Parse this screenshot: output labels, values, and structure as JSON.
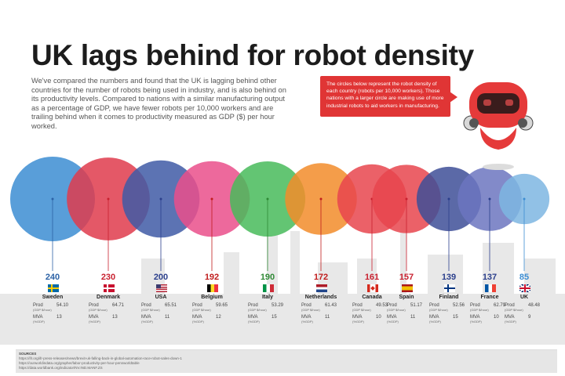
{
  "title": "UK lags behind for robot density",
  "intro": "We've compared the numbers and found that the UK is lagging behind other countries for the number of robots being used in industry, and is also behind on its productivity levels. Compared to nations with a similar manufacturing output as a percentage of GDP, we have fewer robots per 10,000 workers and are trailing behind when it comes to productivity measured as GDP ($) per hour worked.",
  "callout": "The circles below represent the robot density of each country (robots per 10,000 workers). Those nations with a larger circle are making use of more industrial robots to aid workers in manufacturing.",
  "labels": {
    "prod": "Prod",
    "prod_sub": "(GDP $/hour)",
    "mva": "MVA",
    "mva_sub": "(%GDP)"
  },
  "chart_data": {
    "type": "bubble",
    "categories": [
      "Sweden",
      "Denmark",
      "USA",
      "Belgium",
      "Italy",
      "Netherlands",
      "Canada",
      "Spain",
      "Finland",
      "France",
      "UK"
    ],
    "series": [
      {
        "values": [
          240,
          230,
          200,
          192,
          190,
          172,
          161,
          157,
          139,
          137,
          85
        ]
      },
      {
        "name": "Prod",
        "values": [
          54.1,
          64.71,
          65.51,
          59.65,
          53.29,
          61.43,
          49.53,
          51.17,
          52.56,
          62.79,
          48.48
        ]
      },
      {
        "name": "MVA",
        "values": [
          13,
          13,
          11,
          12,
          15,
          11,
          10,
          11,
          15,
          10,
          9
        ]
      }
    ],
    "colors": [
      "#3c8dd2",
      "#df3b4c",
      "#3f5ba6",
      "#ea4f8b",
      "#48bb5b",
      "#f28c2a",
      "#e8454e",
      "#e8454e",
      "#3e4f98",
      "#6c76bf",
      "#7eb6e2"
    ],
    "num_colors": [
      "#2c62a6",
      "#c8202f",
      "#2b3f8c",
      "#c01d1d",
      "#2f8a35",
      "#c01d1d",
      "#c8202f",
      "#c8202f",
      "#2b3f8c",
      "#2b3f8c",
      "#3c8dd2"
    ],
    "display_prod": [
      "54.10",
      "64.71",
      "65.51",
      "59.65",
      "53.29",
      "61.43",
      "49.53",
      "51.17",
      "52.56",
      "62.79",
      "48.48"
    ],
    "flags": [
      "sweden-flag",
      "denmark-flag",
      "usa-flag",
      "belgium-flag",
      "italy-flag",
      "netherlands-flag",
      "canada-flag",
      "spain-flag",
      "finland-flag",
      "france-flag",
      "uk-flag"
    ]
  },
  "sources": {
    "heading": "SOURCES",
    "lines": [
      "https://ifr.org/ifr-press-releases/news/brexit-uk-falling-back-in-global-automation-race-robot-sales-down-1",
      "https://ourworldindata.org/grapher/labor-productivity-per-hour-pennworldtable",
      "https://data.worldbank.org/indicator/NV.IND.MANF.ZS"
    ]
  }
}
